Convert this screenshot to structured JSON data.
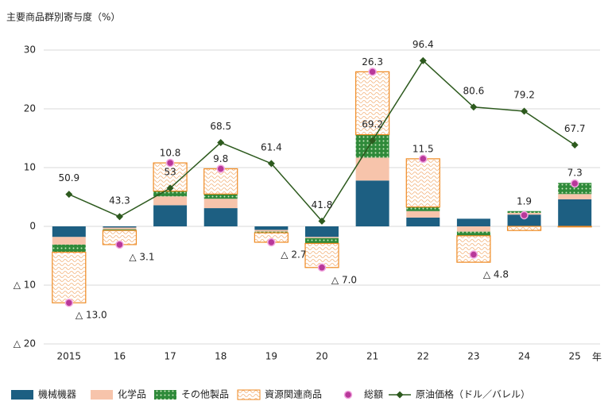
{
  "chart_data": {
    "type": "bar",
    "y_axis_label": "主要商品群別寄与度（%）",
    "x_axis_label": "年",
    "categories": [
      "2015",
      "16",
      "17",
      "18",
      "19",
      "20",
      "21",
      "22",
      "23",
      "24",
      "25"
    ],
    "ylim": [
      -20,
      30
    ],
    "yticks": [
      {
        "value": -20,
        "label": "△ 20"
      },
      {
        "value": -10,
        "label": "△ 10"
      },
      0,
      10,
      20,
      30
    ],
    "y2lim": [
      0,
      100
    ],
    "grid": true,
    "legend": "bottom",
    "series": [
      {
        "name": "機械機器",
        "type": "bar",
        "color": "#1d5f82",
        "values": [
          -1.8,
          -0.2,
          3.6,
          3.1,
          -0.6,
          -1.8,
          7.8,
          1.5,
          1.3,
          2.0,
          4.6
        ]
      },
      {
        "name": "化学品",
        "type": "bar",
        "color": "#f7c4ab",
        "values": [
          -1.3,
          -0.3,
          1.5,
          1.6,
          -0.3,
          -0.2,
          3.9,
          1.1,
          -0.9,
          0.3,
          0.9
        ]
      },
      {
        "name": "その他製品",
        "type": "bar",
        "color": "#2f8a3a",
        "values": [
          -1.3,
          -0.2,
          0.9,
          0.8,
          -0.2,
          -0.9,
          3.9,
          0.7,
          -0.7,
          0.3,
          1.9
        ]
      },
      {
        "name": "資源関連商品",
        "type": "bar",
        "color": "#ef8a22",
        "values": [
          -8.6,
          -2.4,
          4.8,
          4.3,
          -1.6,
          -4.1,
          10.7,
          8.2,
          -4.5,
          -0.7,
          -0.1
        ]
      },
      {
        "name": "総額",
        "type": "scatter",
        "color": "#b8389a",
        "values": [
          -13.0,
          -3.1,
          10.8,
          9.8,
          -2.7,
          -7.0,
          26.3,
          11.5,
          -4.8,
          1.9,
          7.3
        ],
        "value_labels": [
          "△ 13.0",
          "△ 3.1",
          "10.8",
          "9.8",
          "△ 2.7",
          "△ 7.0",
          "26.3",
          "11.5",
          "△ 4.8",
          "1.9",
          "7.3"
        ]
      },
      {
        "name": "原油価格（ドル／バレル）",
        "type": "line",
        "axis": "y2",
        "color": "#2d5a1e",
        "values": [
          50.9,
          43.3,
          53.0,
          68.5,
          61.4,
          41.8,
          69.2,
          96.4,
          80.6,
          79.2,
          67.7
        ]
      }
    ]
  }
}
